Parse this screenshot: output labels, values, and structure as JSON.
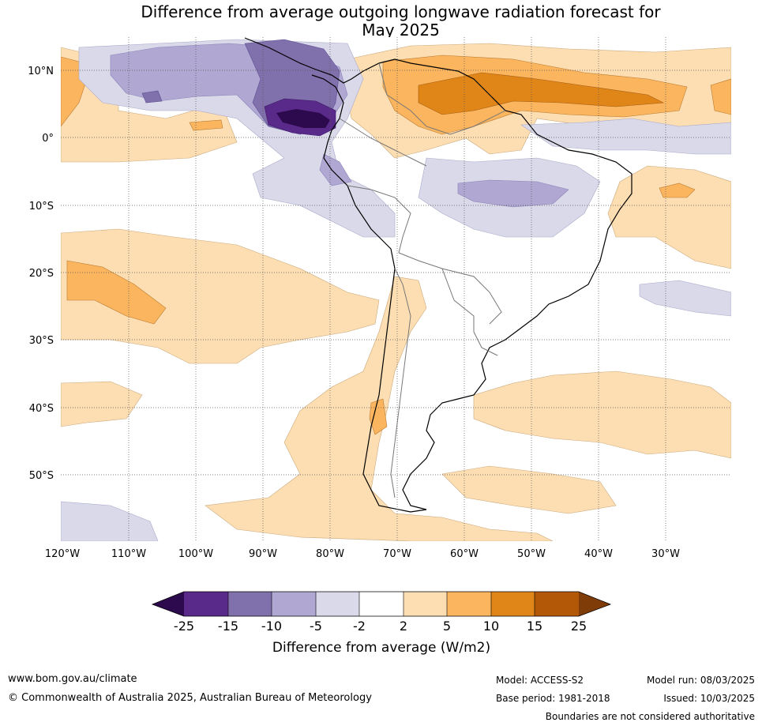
{
  "title_line1": "Difference from average outgoing longwave radiation forecast for",
  "title_line2": "May 2025",
  "lat_labels": [
    "10°N",
    "0°",
    "10°S",
    "20°S",
    "30°S",
    "40°S",
    "50°S"
  ],
  "lon_labels": [
    "120°W",
    "110°W",
    "100°W",
    "90°W",
    "80°W",
    "70°W",
    "60°W",
    "50°W",
    "40°W",
    "30°W"
  ],
  "colorbar": {
    "title": "Difference from average (W/m2)",
    "ticks": [
      "-25",
      "-15",
      "-10",
      "-5",
      "-2",
      "2",
      "5",
      "10",
      "15",
      "25"
    ],
    "colors": [
      "#2d0a4e",
      "#5a2a8a",
      "#8070ab",
      "#b0a8d2",
      "#d9d9ea",
      "#ffffff",
      "#fddeb2",
      "#fbb55f",
      "#e08518",
      "#b35806",
      "#7f3b08"
    ]
  },
  "footer": {
    "website": "www.bom.gov.au/climate",
    "copyright": "© Commonwealth of Australia 2025, Australian Bureau of Meteorology",
    "model": "Model: ACCESS-S2",
    "base_period": "Base period: 1981-2018",
    "model_run": "Model run: 08/03/2025",
    "issued": "Issued: 10/03/2025",
    "disclaimer": "Boundaries are not considered authoritative"
  }
}
